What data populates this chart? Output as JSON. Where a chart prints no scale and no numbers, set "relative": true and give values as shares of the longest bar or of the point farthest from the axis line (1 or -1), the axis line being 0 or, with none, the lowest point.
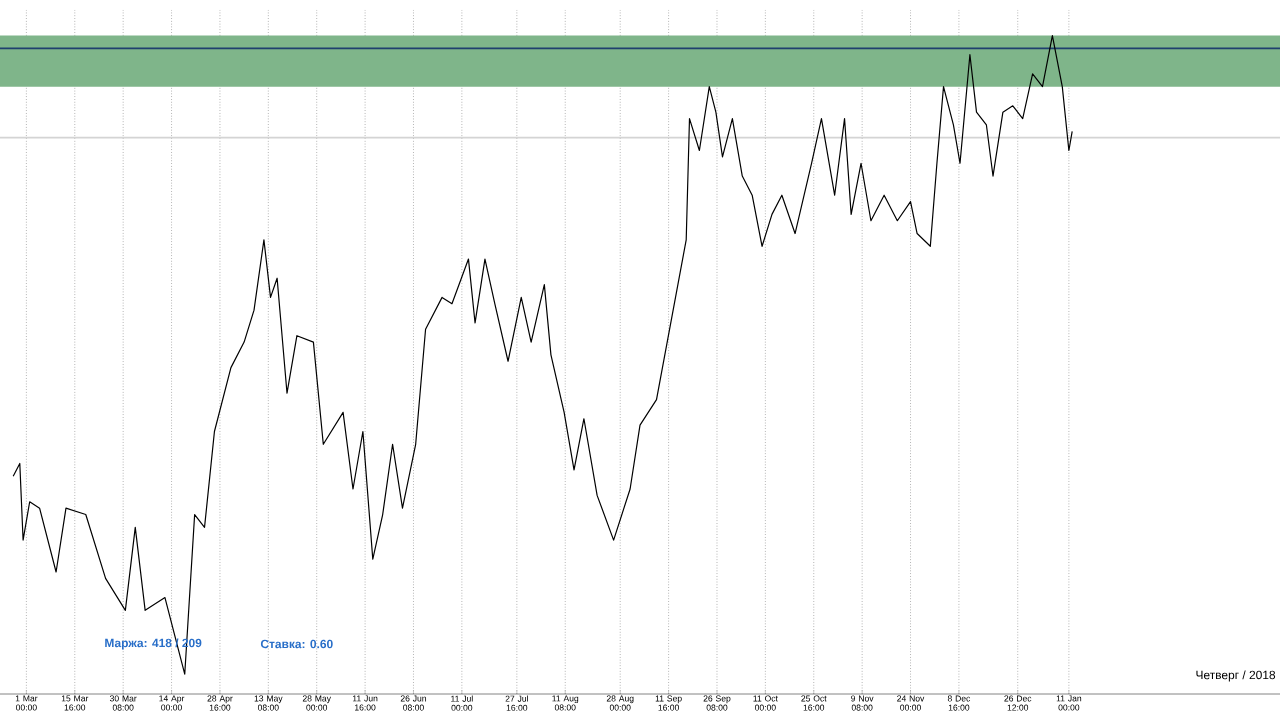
{
  "chart_data": {
    "type": "line",
    "relative": true,
    "grid": "x",
    "marker": "none",
    "line_style": "solid",
    "x": [
      "2017-02-25",
      "2017-02-27",
      "2017-02-28",
      "2017-03-02",
      "2017-03-05",
      "2017-03-10",
      "2017-03-13",
      "2017-03-19",
      "2017-03-25",
      "2017-03-31",
      "2017-04-03",
      "2017-04-06",
      "2017-04-12",
      "2017-04-18",
      "2017-04-21",
      "2017-04-24",
      "2017-04-27",
      "2017-05-02",
      "2017-05-06",
      "2017-05-09",
      "2017-05-12",
      "2017-05-14",
      "2017-05-16",
      "2017-05-19",
      "2017-05-22",
      "2017-05-27",
      "2017-05-30",
      "2017-06-05",
      "2017-06-08",
      "2017-06-11",
      "2017-06-14",
      "2017-06-17",
      "2017-06-20",
      "2017-06-23",
      "2017-06-27",
      "2017-06-30",
      "2017-07-05",
      "2017-07-08",
      "2017-07-13",
      "2017-07-15",
      "2017-07-18",
      "2017-07-21",
      "2017-07-25",
      "2017-07-29",
      "2017-08-01",
      "2017-08-05",
      "2017-08-07",
      "2017-08-11",
      "2017-08-14",
      "2017-08-17",
      "2017-08-21",
      "2017-08-26",
      "2017-08-31",
      "2017-09-03",
      "2017-09-08",
      "2017-09-17",
      "2017-09-18",
      "2017-09-21",
      "2017-09-24",
      "2017-09-26",
      "2017-09-28",
      "2017-10-01",
      "2017-10-04",
      "2017-10-07",
      "2017-10-10",
      "2017-10-13",
      "2017-10-16",
      "2017-10-20",
      "2017-10-25",
      "2017-10-28",
      "2017-11-01",
      "2017-11-04",
      "2017-11-06",
      "2017-11-09",
      "2017-11-12",
      "2017-11-16",
      "2017-11-20",
      "2017-11-24",
      "2017-11-26",
      "2017-11-30",
      "2017-12-02",
      "2017-12-04",
      "2017-12-07",
      "2017-12-09",
      "2017-12-12",
      "2017-12-14",
      "2017-12-17",
      "2017-12-19",
      "2017-12-22",
      "2017-12-25",
      "2017-12-28",
      "2017-12-31",
      "2018-01-03",
      "2018-01-06",
      "2018-01-09",
      "2018-01-11",
      "2018-01-12"
    ],
    "series": [
      {
        "color": "#000000",
        "values": [
          0.31,
          0.33,
          0.21,
          0.27,
          0.26,
          0.16,
          0.26,
          0.25,
          0.15,
          0.1,
          0.23,
          0.1,
          0.12,
          0.0,
          0.25,
          0.23,
          0.38,
          0.48,
          0.52,
          0.57,
          0.68,
          0.59,
          0.62,
          0.44,
          0.53,
          0.52,
          0.36,
          0.41,
          0.29,
          0.38,
          0.18,
          0.25,
          0.36,
          0.26,
          0.36,
          0.54,
          0.59,
          0.58,
          0.65,
          0.55,
          0.65,
          0.58,
          0.49,
          0.59,
          0.52,
          0.61,
          0.5,
          0.41,
          0.32,
          0.4,
          0.28,
          0.21,
          0.29,
          0.39,
          0.43,
          0.68,
          0.87,
          0.82,
          0.92,
          0.88,
          0.81,
          0.87,
          0.78,
          0.75,
          0.67,
          0.72,
          0.75,
          0.69,
          0.8,
          0.87,
          0.75,
          0.87,
          0.72,
          0.8,
          0.71,
          0.75,
          0.71,
          0.74,
          0.69,
          0.67,
          0.8,
          0.92,
          0.86,
          0.8,
          0.97,
          0.88,
          0.86,
          0.78,
          0.88,
          0.89,
          0.87,
          0.94,
          0.92,
          1.0,
          0.92,
          0.82,
          0.85
        ]
      }
    ],
    "xlim": [
      "2017-02-21",
      "2018-03-16"
    ],
    "xticks": [
      {
        "value": "2017-03-01T00:00",
        "label": "1 Mar 00:00"
      },
      {
        "value": "2017-03-15T16:00",
        "label": "15 Mar 16:00"
      },
      {
        "value": "2017-03-30T08:00",
        "label": "30 Mar 08:00"
      },
      {
        "value": "2017-04-14T00:00",
        "label": "14 Apr 00:00"
      },
      {
        "value": "2017-04-28T16:00",
        "label": "28 Apr 16:00"
      },
      {
        "value": "2017-05-13T08:00",
        "label": "13 May 08:00"
      },
      {
        "value": "2017-05-28T00:00",
        "label": "28 May 00:00"
      },
      {
        "value": "2017-06-11T16:00",
        "label": "11 Jun 16:00"
      },
      {
        "value": "2017-06-26T08:00",
        "label": "26 Jun 08:00"
      },
      {
        "value": "2017-07-11T00:00",
        "label": "11 Jul 00:00"
      },
      {
        "value": "2017-07-27T16:00",
        "label": "27 Jul 16:00"
      },
      {
        "value": "2017-08-11T08:00",
        "label": "11 Aug 08:00"
      },
      {
        "value": "2017-08-28T00:00",
        "label": "28 Aug 00:00"
      },
      {
        "value": "2017-09-11T16:00",
        "label": "11 Sep 16:00"
      },
      {
        "value": "2017-09-26T08:00",
        "label": "26 Sep 08:00"
      },
      {
        "value": "2017-10-11T00:00",
        "label": "11 Oct 00:00"
      },
      {
        "value": "2017-10-25T16:00",
        "label": "25 Oct 16:00"
      },
      {
        "value": "2017-11-09T08:00",
        "label": "9 Nov 08:00"
      },
      {
        "value": "2017-11-24T00:00",
        "label": "24 Nov 00:00"
      },
      {
        "value": "2017-12-08T16:00",
        "label": "8 Dec 16:00"
      },
      {
        "value": "2017-12-26T12:00",
        "label": "26 Dec 12:00"
      },
      {
        "value": "2018-01-11T00:00",
        "label": "11 Jan 00:00"
      }
    ],
    "bands": [
      {
        "axis": "y",
        "from": 0.92,
        "to": 1.0,
        "color": "#7fb58a"
      }
    ],
    "ref_lines": [
      {
        "axis": "y",
        "value": 0.98,
        "color": "#1f3f6e"
      },
      {
        "axis": "y",
        "value": 0.84,
        "color": "#d4d4d4"
      }
    ],
    "annotations": [
      "Маржа: 418 / 209",
      "Ставка: 0.60",
      "Четверг / 2018"
    ]
  }
}
